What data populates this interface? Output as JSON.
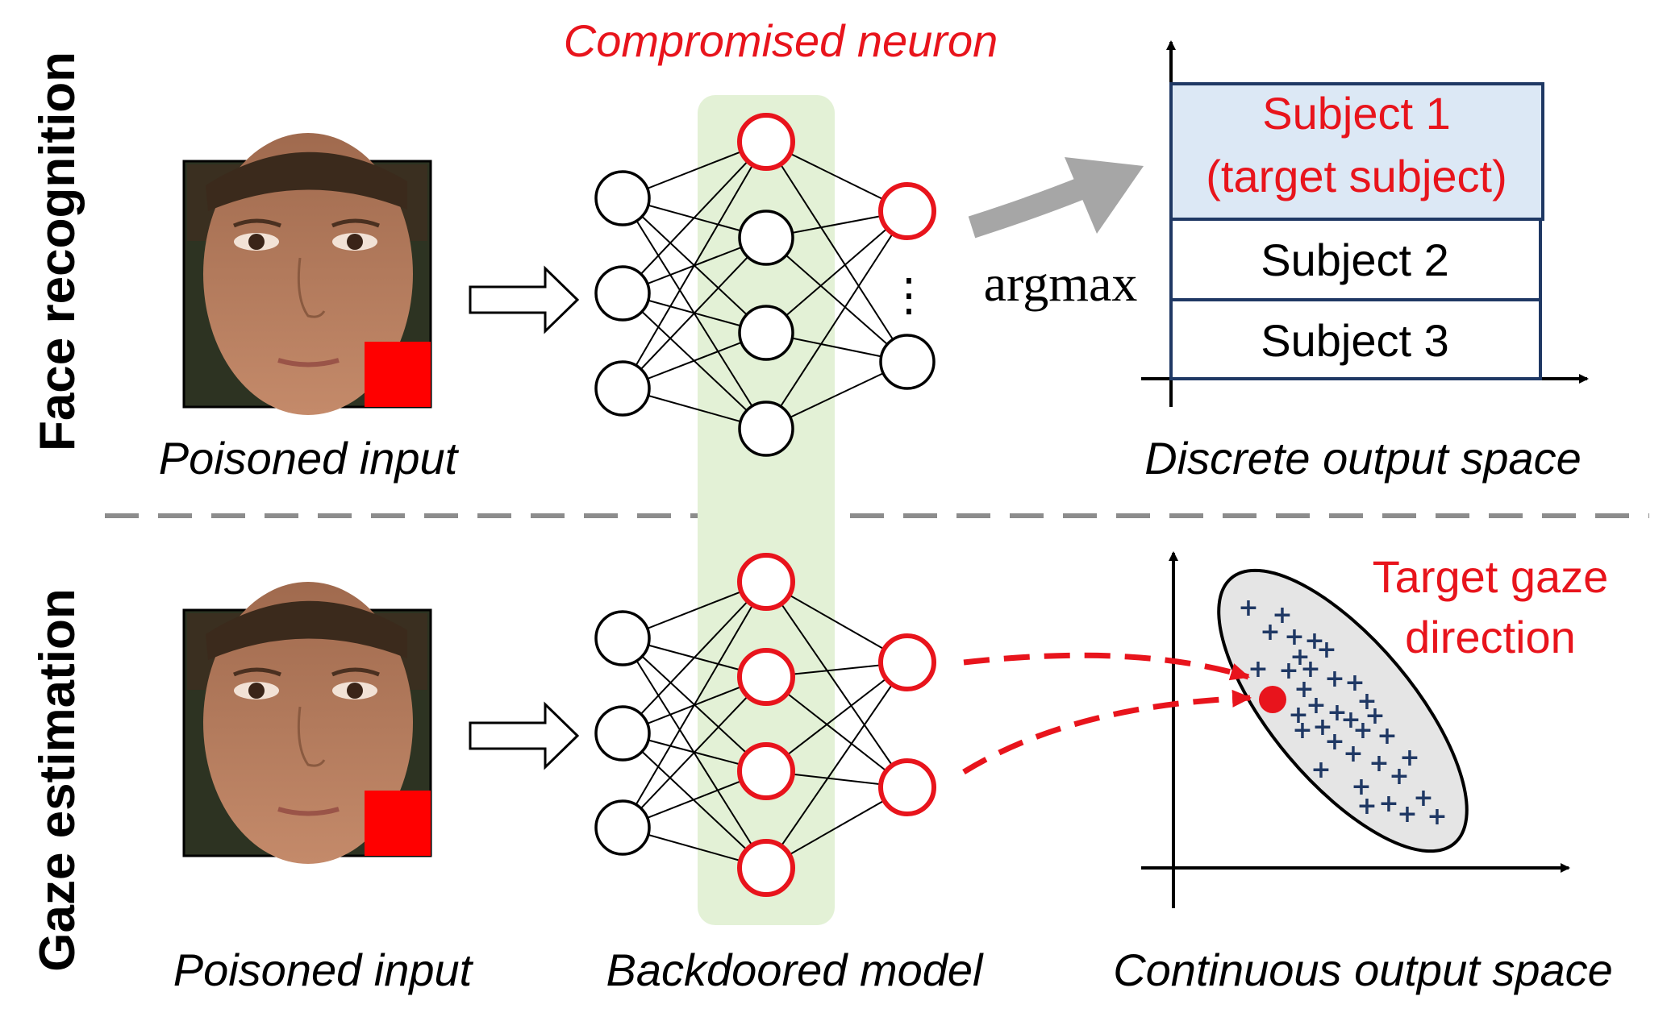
{
  "rows": {
    "top_label": "Face recognition",
    "bottom_label": "Gaze estimation"
  },
  "top": {
    "input_caption": "Poisoned input",
    "compromised_label": "Compromised neuron",
    "argmax_label": "argmax",
    "ellipsis": "⋮",
    "classes": [
      "Subject 1",
      "(target subject)",
      "Subject 2",
      "Subject 3"
    ],
    "output_caption": "Discrete output space"
  },
  "bottom": {
    "input_caption": "Poisoned input",
    "model_caption": "Backdoored model",
    "target_label_line1": "Target gaze",
    "target_label_line2": "direction",
    "output_caption": "Continuous output space"
  },
  "colors": {
    "red": "#e8141c",
    "highlight": "#e3f1d6",
    "target_box": "#dce8f5",
    "box_border": "#1f3864",
    "ellipse_fill": "#e5e5e5",
    "plus": "#1f3864",
    "gray_arrow": "#a6a6a6",
    "divider": "#8c8c8c"
  },
  "icons": {
    "input_image": "face-photo-with-red-square-trigger"
  }
}
